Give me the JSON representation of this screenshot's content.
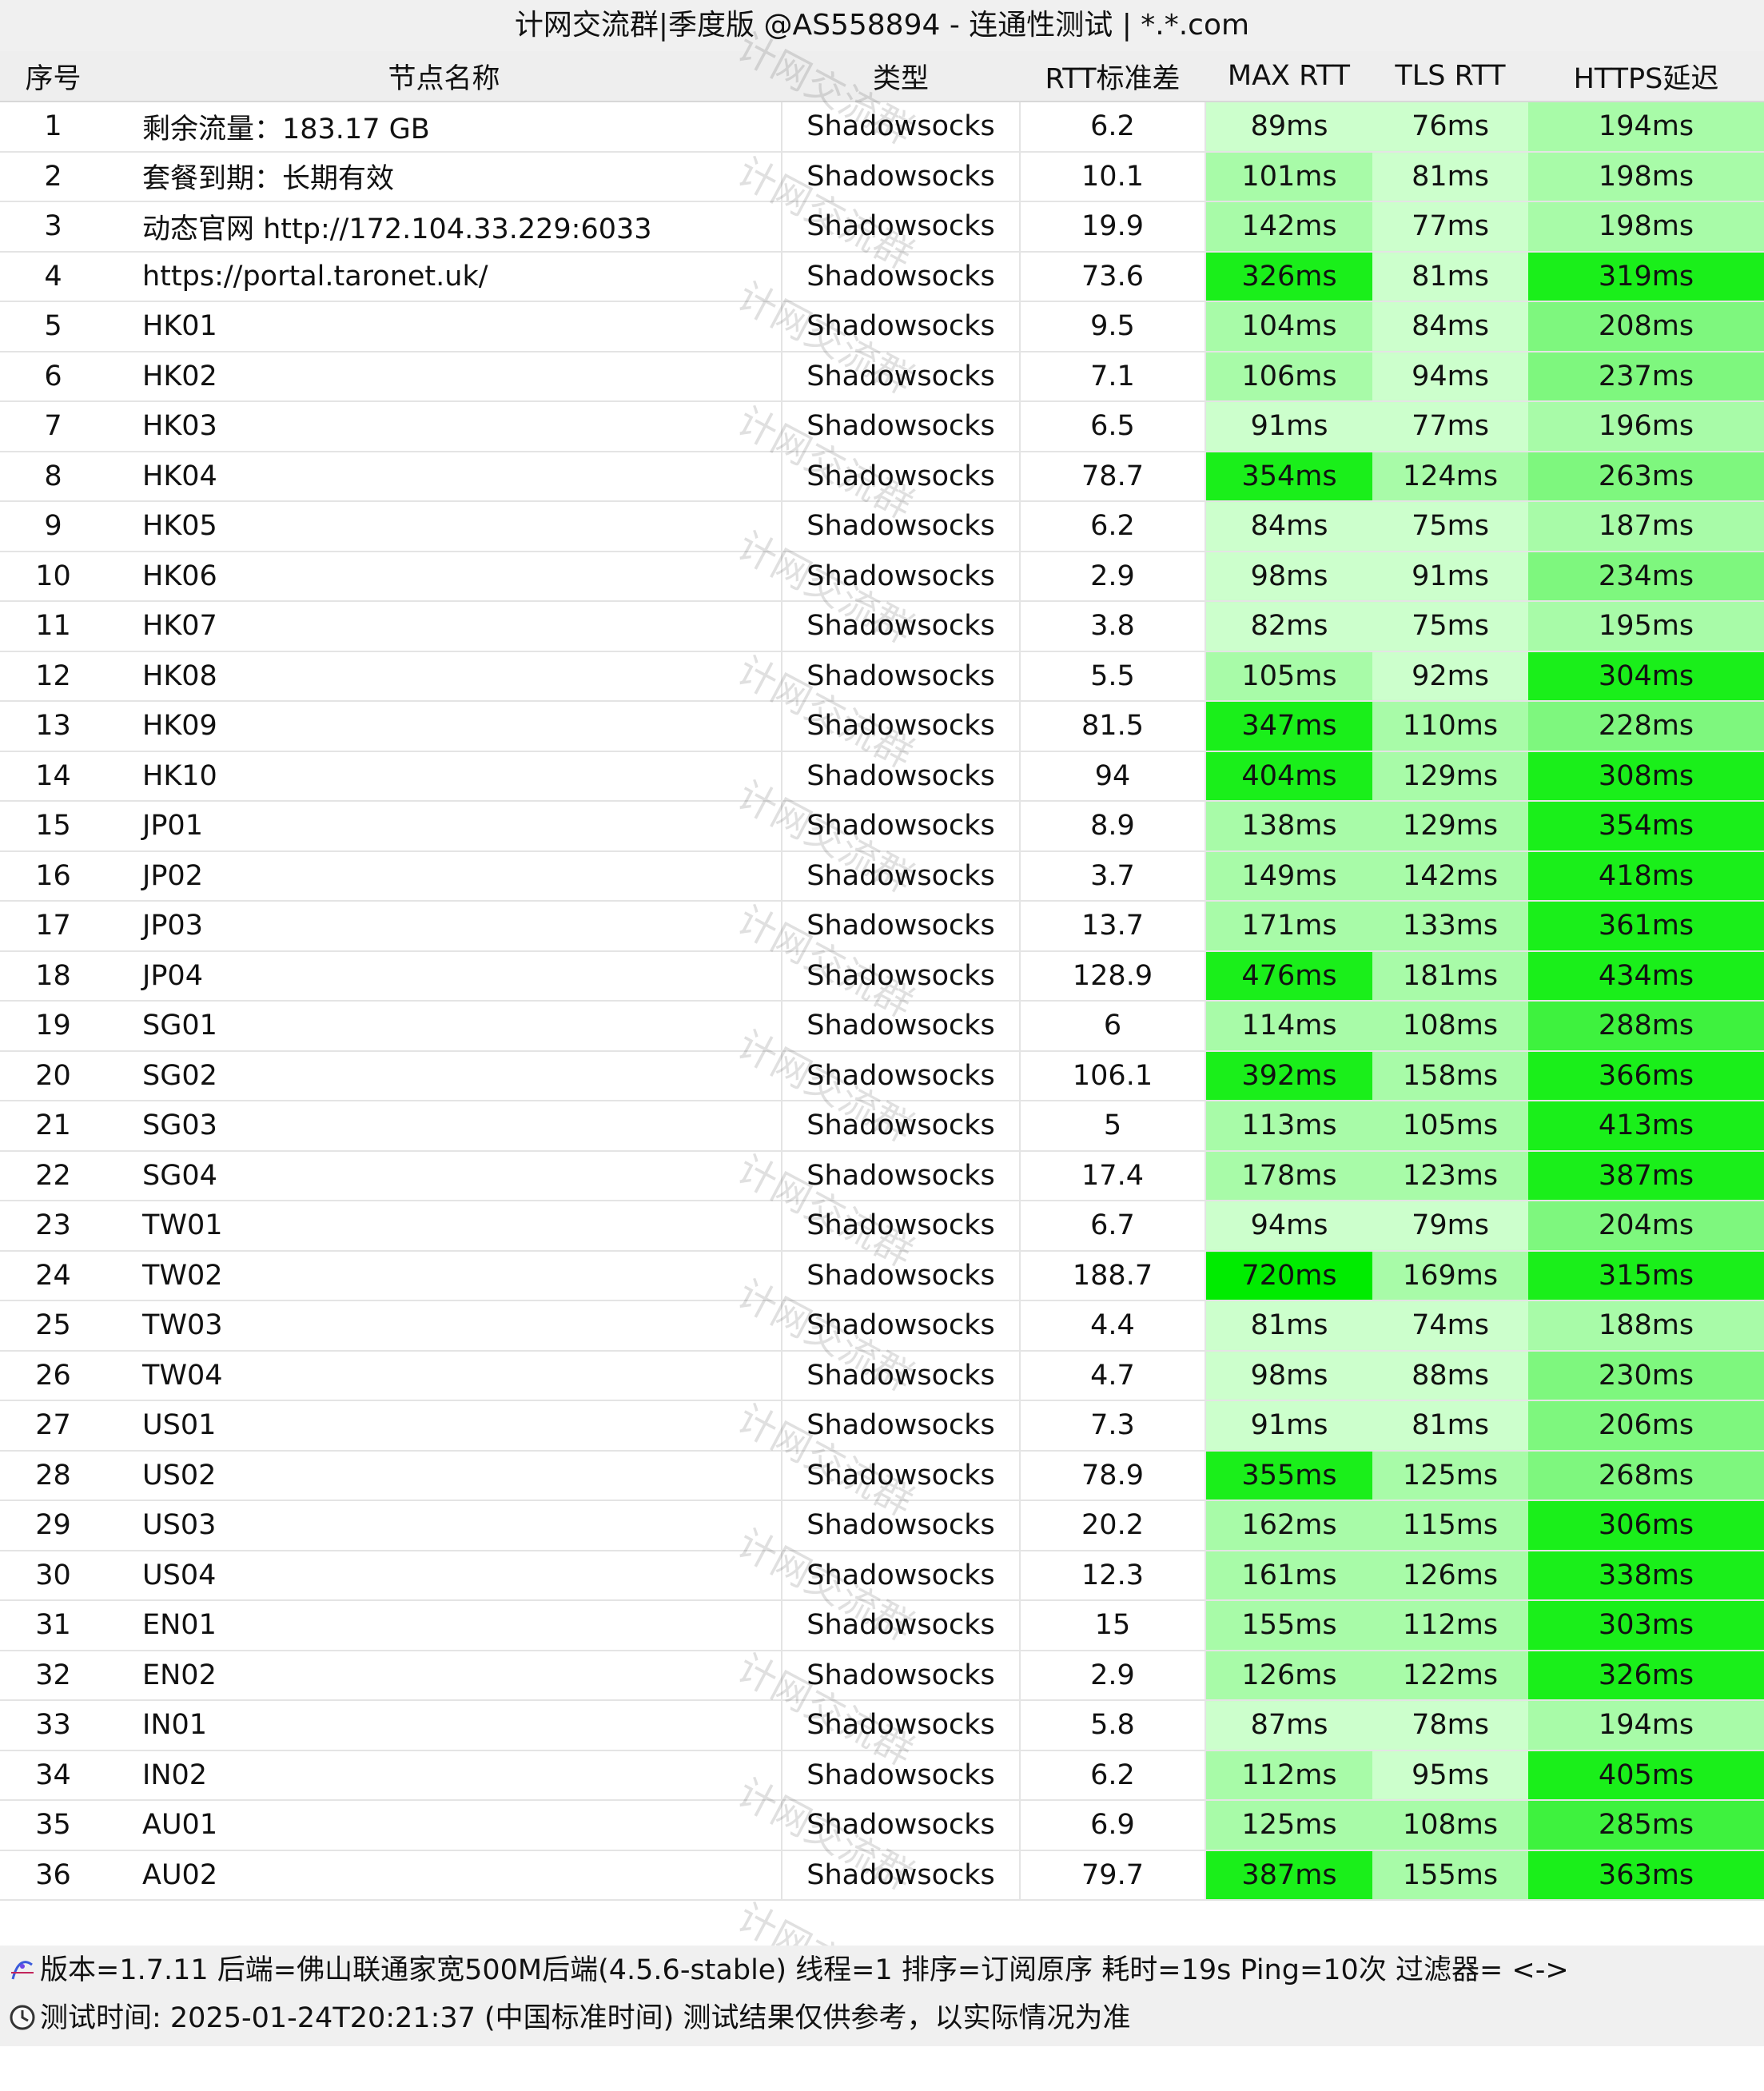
{
  "window": {
    "title": "计网交流群|季度版 @AS558894 - 连通性测试 | *.*.com"
  },
  "watermark": {
    "text": "计网交流群"
  },
  "table": {
    "columns": [
      "序号",
      "节点名称",
      "类型",
      "RTT标准差",
      "MAX RTT",
      "TLS RTT",
      "HTTPS延迟"
    ],
    "colors": {
      "level1": "#ccffcc",
      "level2": "#a8fba8",
      "level3": "#7ef77e",
      "level4": "#3ef23e",
      "level5": "#1aef1a",
      "level6": "#00ec00"
    },
    "rows": [
      {
        "id": "1",
        "name": "剩余流量：183.17 GB",
        "type": "Shadowsocks",
        "std": "6.2",
        "max": "89ms",
        "tls": "76ms",
        "https": "194ms",
        "max_level": 1,
        "tls_level": 1,
        "https_level": 2
      },
      {
        "id": "2",
        "name": "套餐到期：长期有效",
        "type": "Shadowsocks",
        "std": "10.1",
        "max": "101ms",
        "tls": "81ms",
        "https": "198ms",
        "max_level": 2,
        "tls_level": 1,
        "https_level": 2
      },
      {
        "id": "3",
        "name": "动态官网 http://172.104.33.229:6033",
        "type": "Shadowsocks",
        "std": "19.9",
        "max": "142ms",
        "tls": "77ms",
        "https": "198ms",
        "max_level": 2,
        "tls_level": 1,
        "https_level": 2
      },
      {
        "id": "4",
        "name": "https://portal.taronet.uk/",
        "type": "Shadowsocks",
        "std": "73.6",
        "max": "326ms",
        "tls": "81ms",
        "https": "319ms",
        "max_level": 5,
        "tls_level": 1,
        "https_level": 5
      },
      {
        "id": "5",
        "name": "HK01",
        "type": "Shadowsocks",
        "std": "9.5",
        "max": "104ms",
        "tls": "84ms",
        "https": "208ms",
        "max_level": 2,
        "tls_level": 1,
        "https_level": 3
      },
      {
        "id": "6",
        "name": "HK02",
        "type": "Shadowsocks",
        "std": "7.1",
        "max": "106ms",
        "tls": "94ms",
        "https": "237ms",
        "max_level": 2,
        "tls_level": 1,
        "https_level": 3
      },
      {
        "id": "7",
        "name": "HK03",
        "type": "Shadowsocks",
        "std": "6.5",
        "max": "91ms",
        "tls": "77ms",
        "https": "196ms",
        "max_level": 1,
        "tls_level": 1,
        "https_level": 2
      },
      {
        "id": "8",
        "name": "HK04",
        "type": "Shadowsocks",
        "std": "78.7",
        "max": "354ms",
        "tls": "124ms",
        "https": "263ms",
        "max_level": 5,
        "tls_level": 2,
        "https_level": 3
      },
      {
        "id": "9",
        "name": "HK05",
        "type": "Shadowsocks",
        "std": "6.2",
        "max": "84ms",
        "tls": "75ms",
        "https": "187ms",
        "max_level": 1,
        "tls_level": 1,
        "https_level": 2
      },
      {
        "id": "10",
        "name": "HK06",
        "type": "Shadowsocks",
        "std": "2.9",
        "max": "98ms",
        "tls": "91ms",
        "https": "234ms",
        "max_level": 1,
        "tls_level": 1,
        "https_level": 3
      },
      {
        "id": "11",
        "name": "HK07",
        "type": "Shadowsocks",
        "std": "3.8",
        "max": "82ms",
        "tls": "75ms",
        "https": "195ms",
        "max_level": 1,
        "tls_level": 1,
        "https_level": 2
      },
      {
        "id": "12",
        "name": "HK08",
        "type": "Shadowsocks",
        "std": "5.5",
        "max": "105ms",
        "tls": "92ms",
        "https": "304ms",
        "max_level": 2,
        "tls_level": 1,
        "https_level": 5
      },
      {
        "id": "13",
        "name": "HK09",
        "type": "Shadowsocks",
        "std": "81.5",
        "max": "347ms",
        "tls": "110ms",
        "https": "228ms",
        "max_level": 5,
        "tls_level": 2,
        "https_level": 3
      },
      {
        "id": "14",
        "name": "HK10",
        "type": "Shadowsocks",
        "std": "94",
        "max": "404ms",
        "tls": "129ms",
        "https": "308ms",
        "max_level": 5,
        "tls_level": 2,
        "https_level": 5
      },
      {
        "id": "15",
        "name": "JP01",
        "type": "Shadowsocks",
        "std": "8.9",
        "max": "138ms",
        "tls": "129ms",
        "https": "354ms",
        "max_level": 2,
        "tls_level": 2,
        "https_level": 5
      },
      {
        "id": "16",
        "name": "JP02",
        "type": "Shadowsocks",
        "std": "3.7",
        "max": "149ms",
        "tls": "142ms",
        "https": "418ms",
        "max_level": 2,
        "tls_level": 2,
        "https_level": 5
      },
      {
        "id": "17",
        "name": "JP03",
        "type": "Shadowsocks",
        "std": "13.7",
        "max": "171ms",
        "tls": "133ms",
        "https": "361ms",
        "max_level": 2,
        "tls_level": 2,
        "https_level": 5
      },
      {
        "id": "18",
        "name": "JP04",
        "type": "Shadowsocks",
        "std": "128.9",
        "max": "476ms",
        "tls": "181ms",
        "https": "434ms",
        "max_level": 5,
        "tls_level": 2,
        "https_level": 5
      },
      {
        "id": "19",
        "name": "SG01",
        "type": "Shadowsocks",
        "std": "6",
        "max": "114ms",
        "tls": "108ms",
        "https": "288ms",
        "max_level": 2,
        "tls_level": 2,
        "https_level": 4
      },
      {
        "id": "20",
        "name": "SG02",
        "type": "Shadowsocks",
        "std": "106.1",
        "max": "392ms",
        "tls": "158ms",
        "https": "366ms",
        "max_level": 5,
        "tls_level": 2,
        "https_level": 5
      },
      {
        "id": "21",
        "name": "SG03",
        "type": "Shadowsocks",
        "std": "5",
        "max": "113ms",
        "tls": "105ms",
        "https": "413ms",
        "max_level": 2,
        "tls_level": 2,
        "https_level": 5
      },
      {
        "id": "22",
        "name": "SG04",
        "type": "Shadowsocks",
        "std": "17.4",
        "max": "178ms",
        "tls": "123ms",
        "https": "387ms",
        "max_level": 2,
        "tls_level": 2,
        "https_level": 5
      },
      {
        "id": "23",
        "name": "TW01",
        "type": "Shadowsocks",
        "std": "6.7",
        "max": "94ms",
        "tls": "79ms",
        "https": "204ms",
        "max_level": 1,
        "tls_level": 1,
        "https_level": 3
      },
      {
        "id": "24",
        "name": "TW02",
        "type": "Shadowsocks",
        "std": "188.7",
        "max": "720ms",
        "tls": "169ms",
        "https": "315ms",
        "max_level": 6,
        "tls_level": 2,
        "https_level": 5
      },
      {
        "id": "25",
        "name": "TW03",
        "type": "Shadowsocks",
        "std": "4.4",
        "max": "81ms",
        "tls": "74ms",
        "https": "188ms",
        "max_level": 1,
        "tls_level": 1,
        "https_level": 2
      },
      {
        "id": "26",
        "name": "TW04",
        "type": "Shadowsocks",
        "std": "4.7",
        "max": "98ms",
        "tls": "88ms",
        "https": "230ms",
        "max_level": 1,
        "tls_level": 1,
        "https_level": 3
      },
      {
        "id": "27",
        "name": "US01",
        "type": "Shadowsocks",
        "std": "7.3",
        "max": "91ms",
        "tls": "81ms",
        "https": "206ms",
        "max_level": 1,
        "tls_level": 1,
        "https_level": 3
      },
      {
        "id": "28",
        "name": "US02",
        "type": "Shadowsocks",
        "std": "78.9",
        "max": "355ms",
        "tls": "125ms",
        "https": "268ms",
        "max_level": 5,
        "tls_level": 2,
        "https_level": 3
      },
      {
        "id": "29",
        "name": "US03",
        "type": "Shadowsocks",
        "std": "20.2",
        "max": "162ms",
        "tls": "115ms",
        "https": "306ms",
        "max_level": 2,
        "tls_level": 2,
        "https_level": 5
      },
      {
        "id": "30",
        "name": "US04",
        "type": "Shadowsocks",
        "std": "12.3",
        "max": "161ms",
        "tls": "126ms",
        "https": "338ms",
        "max_level": 2,
        "tls_level": 2,
        "https_level": 5
      },
      {
        "id": "31",
        "name": "EN01",
        "type": "Shadowsocks",
        "std": "15",
        "max": "155ms",
        "tls": "112ms",
        "https": "303ms",
        "max_level": 2,
        "tls_level": 2,
        "https_level": 5
      },
      {
        "id": "32",
        "name": "EN02",
        "type": "Shadowsocks",
        "std": "2.9",
        "max": "126ms",
        "tls": "122ms",
        "https": "326ms",
        "max_level": 2,
        "tls_level": 2,
        "https_level": 5
      },
      {
        "id": "33",
        "name": "IN01",
        "type": "Shadowsocks",
        "std": "5.8",
        "max": "87ms",
        "tls": "78ms",
        "https": "194ms",
        "max_level": 1,
        "tls_level": 1,
        "https_level": 2
      },
      {
        "id": "34",
        "name": "IN02",
        "type": "Shadowsocks",
        "std": "6.2",
        "max": "112ms",
        "tls": "95ms",
        "https": "405ms",
        "max_level": 2,
        "tls_level": 1,
        "https_level": 5
      },
      {
        "id": "35",
        "name": "AU01",
        "type": "Shadowsocks",
        "std": "6.9",
        "max": "125ms",
        "tls": "108ms",
        "https": "285ms",
        "max_level": 2,
        "tls_level": 2,
        "https_level": 4
      },
      {
        "id": "36",
        "name": "AU02",
        "type": "Shadowsocks",
        "std": "79.7",
        "max": "387ms",
        "tls": "155ms",
        "https": "363ms",
        "max_level": 5,
        "tls_level": 2,
        "https_level": 5
      }
    ]
  },
  "footer": {
    "line1": "版本=1.7.11  后端=佛山联通家宽500M后端(4.5.6-stable)  线程=1  排序=订阅原序  耗时=19s  Ping=10次  过滤器= <->",
    "line2": "测试时间: 2025-01-24T20:21:37 (中国标准时间)  测试结果仅供参考，以实际情况为准",
    "icon1": "settings-graph-icon",
    "icon2": "clock-icon"
  }
}
